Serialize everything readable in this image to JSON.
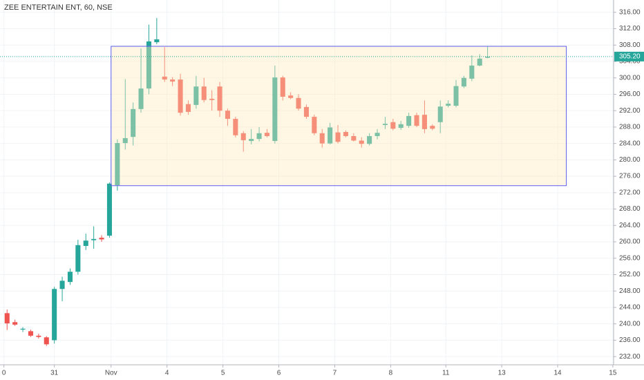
{
  "chart_data": {
    "type": "candlestick",
    "title": "ZEE ENTERTAIN ENT, 60, NSE",
    "up_color": "#26a69a",
    "down_color": "#ef5350",
    "grid": true,
    "xlim": [
      -0.9,
      77.0
    ],
    "xticks": [
      {
        "value": -0.4,
        "label": "0"
      },
      {
        "value": 6.0,
        "label": "31"
      },
      {
        "value": 13.2,
        "label": "Nov"
      },
      {
        "value": 20.3,
        "label": "4"
      },
      {
        "value": 27.4,
        "label": "5"
      },
      {
        "value": 34.5,
        "label": "6"
      },
      {
        "value": 41.6,
        "label": "7"
      },
      {
        "value": 48.7,
        "label": "8"
      },
      {
        "value": 55.7,
        "label": "11"
      },
      {
        "value": 62.8,
        "label": "13"
      },
      {
        "value": 69.9,
        "label": "14"
      },
      {
        "value": 76.9,
        "label": "15"
      }
    ],
    "ylim": [
      230,
      319
    ],
    "yticks": [
      {
        "value": 232,
        "label": "232.00"
      },
      {
        "value": 236,
        "label": "236.00"
      },
      {
        "value": 240,
        "label": "240.00"
      },
      {
        "value": 244,
        "label": "244.00"
      },
      {
        "value": 248,
        "label": "248.00"
      },
      {
        "value": 252,
        "label": "252.00"
      },
      {
        "value": 256,
        "label": "256.00"
      },
      {
        "value": 260,
        "label": "260.00"
      },
      {
        "value": 264,
        "label": "264.00"
      },
      {
        "value": 268,
        "label": "268.00"
      },
      {
        "value": 272,
        "label": "272.00"
      },
      {
        "value": 276,
        "label": "276.00"
      },
      {
        "value": 280,
        "label": "280.00"
      },
      {
        "value": 284,
        "label": "284.00"
      },
      {
        "value": 288,
        "label": "288.00"
      },
      {
        "value": 292,
        "label": "292.00"
      },
      {
        "value": 296,
        "label": "296.00"
      },
      {
        "value": 300,
        "label": "300.00"
      },
      {
        "value": 304,
        "label": "304.00"
      },
      {
        "value": 308,
        "label": "308.00"
      },
      {
        "value": 312,
        "label": "312.00"
      },
      {
        "value": 316,
        "label": "316.00"
      }
    ],
    "last_price": {
      "value": 305.2,
      "label": "305.20"
    },
    "range_box": {
      "x": [
        13.2,
        71.0
      ],
      "y": [
        273.7,
        307.7
      ],
      "color": "#5c5cf0"
    },
    "open": [
      242.6,
      240.4,
      238.6,
      238.2,
      237.1,
      236.7,
      236.0,
      248.5,
      250.2,
      252.7,
      259.0,
      260.4,
      261.0,
      261.5,
      273.8,
      284.1,
      285.6,
      292.4,
      297.4,
      308.7,
      300.3,
      299.6,
      299.6,
      293.6,
      293.4,
      297.9,
      294.9,
      297.9,
      292.0,
      290.0,
      286.5,
      284.6,
      285.1,
      286.6,
      284.6,
      300.1,
      295.7,
      295.1,
      292.9,
      290.5,
      286.5,
      284.0,
      286.7,
      286.8,
      285.8,
      284.7,
      283.9,
      285.8,
      288.5,
      289.2,
      287.8,
      288.3,
      290.9,
      291.0,
      288.3,
      289.2,
      293.2,
      293.2,
      297.9,
      299.8,
      303.0,
      304.9
    ],
    "high": [
      243.5,
      241.0,
      239.2,
      238.6,
      237.6,
      237.0,
      249.0,
      251.5,
      253.5,
      260.5,
      262.0,
      263.8,
      261.6,
      274.5,
      285.0,
      299.7,
      294.0,
      307.2,
      313.0,
      314.6,
      307.5,
      300.2,
      301.0,
      294.5,
      300.5,
      300.0,
      297.0,
      299.0,
      292.5,
      290.5,
      287.0,
      287.5,
      288.0,
      287.5,
      303.0,
      300.5,
      296.5,
      296.0,
      293.5,
      291.0,
      287.5,
      289.0,
      288.5,
      287.2,
      286.5,
      285.5,
      286.5,
      287.5,
      290.5,
      290.0,
      289.5,
      291.5,
      291.5,
      294.5,
      288.7,
      294.5,
      294.5,
      299.5,
      300.5,
      305.5,
      305.8,
      307.7
    ],
    "low": [
      238.5,
      239.5,
      238.0,
      236.8,
      236.4,
      234.6,
      235.2,
      245.5,
      249.5,
      252.0,
      258.0,
      258.3,
      260.0,
      261.0,
      272.5,
      282.5,
      283.5,
      291.5,
      296.0,
      308.2,
      299.0,
      298.0,
      290.8,
      291.0,
      292.5,
      294.0,
      292.0,
      290.5,
      288.3,
      285.5,
      282.0,
      283.8,
      284.5,
      285.5,
      284.0,
      294.5,
      294.8,
      292.0,
      290.0,
      286.0,
      283.0,
      283.8,
      284.0,
      285.5,
      284.5,
      283.0,
      283.5,
      285.0,
      287.5,
      287.2,
      287.3,
      287.8,
      288.0,
      286.5,
      287.2,
      286.5,
      292.8,
      292.8,
      297.5,
      299.2,
      302.8,
      304.8
    ],
    "close": [
      240.1,
      239.8,
      238.8,
      237.1,
      236.8,
      235.0,
      248.5,
      250.5,
      252.7,
      259.2,
      260.3,
      260.7,
      260.6,
      274.2,
      284.1,
      285.3,
      292.4,
      297.4,
      308.9,
      309.4,
      299.6,
      299.1,
      291.5,
      291.7,
      297.9,
      294.6,
      294.6,
      292.0,
      290.0,
      286.0,
      284.8,
      285.1,
      286.5,
      285.8,
      300.1,
      295.4,
      295.1,
      292.5,
      290.5,
      286.5,
      284.0,
      287.9,
      284.4,
      285.8,
      284.7,
      283.9,
      285.8,
      286.6,
      288.8,
      287.6,
      288.7,
      290.7,
      288.3,
      287.5,
      287.6,
      293.0,
      293.7,
      298.0,
      300.0,
      303.0,
      304.7,
      305.2
    ]
  }
}
